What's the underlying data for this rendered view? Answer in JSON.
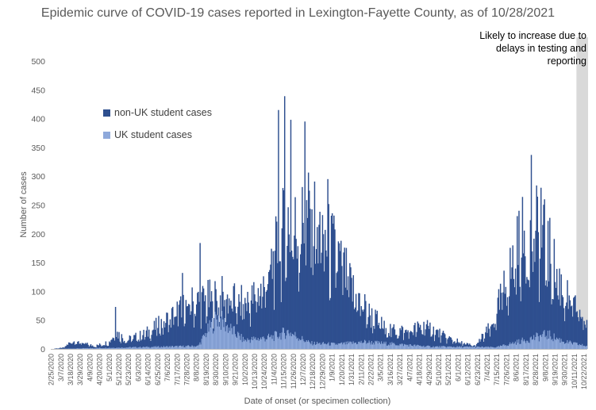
{
  "chart_data": {
    "type": "bar",
    "title": "Epidemic curve of COVID-19 cases reported in Lexington-Fayette County, as of 10/28/2021",
    "xlabel": "Date of onset (or specimen collection)",
    "ylabel": "Number of cases",
    "ylim": [
      0,
      500
    ],
    "yticks": [
      0,
      50,
      100,
      150,
      200,
      250,
      300,
      350,
      400,
      450,
      500
    ],
    "x_start": "2/25/2020",
    "x_end": "10/25/2021",
    "x_tick_labels": [
      "2/25/2020",
      "3/7/2020",
      "3/18/2020",
      "3/29/2020",
      "4/9/2020",
      "4/20/2020",
      "5/1/2020",
      "5/12/2020",
      "5/23/2020",
      "6/3/2020",
      "6/14/2020",
      "6/25/2020",
      "7/6/2020",
      "7/17/2020",
      "7/28/2020",
      "8/8/2020",
      "8/19/2020",
      "8/30/2020",
      "9/10/2020",
      "9/21/2020",
      "10/2/2020",
      "10/13/2020",
      "10/24/2020",
      "11/4/2020",
      "11/15/2020",
      "11/26/2020",
      "12/7/2020",
      "12/18/2020",
      "12/29/2020",
      "1/9/2021",
      "1/20/2021",
      "1/31/2021",
      "2/11/2021",
      "2/22/2021",
      "3/5/2021",
      "3/16/2021",
      "3/27/2021",
      "4/7/2021",
      "4/18/2021",
      "4/29/2021",
      "5/10/2021",
      "5/21/2021",
      "6/1/2021",
      "6/12/2021",
      "6/23/2021",
      "7/4/2021",
      "7/15/2021",
      "7/26/2021",
      "8/6/2021",
      "8/17/2021",
      "8/28/2021",
      "9/8/2021",
      "9/19/2021",
      "9/30/2021",
      "10/11/2021",
      "10/22/2021"
    ],
    "series": [
      {
        "name": "non-UK student cases",
        "color": "#2e4f8f"
      },
      {
        "name": "UK student cases",
        "color": "#8ea9db"
      }
    ],
    "total_curve": [
      {
        "date": "2/25/2020",
        "value": 0
      },
      {
        "date": "3/10/2020",
        "value": 2
      },
      {
        "date": "3/20/2020",
        "value": 14
      },
      {
        "date": "3/30/2020",
        "value": 10
      },
      {
        "date": "4/15/2020",
        "value": 5
      },
      {
        "date": "5/1/2020",
        "value": 12
      },
      {
        "date": "5/8/2020",
        "value": 30
      },
      {
        "date": "5/20/2020",
        "value": 15
      },
      {
        "date": "6/10/2020",
        "value": 25
      },
      {
        "date": "7/1/2020",
        "value": 45
      },
      {
        "date": "7/20/2020",
        "value": 65
      },
      {
        "date": "8/5/2020",
        "value": 80
      },
      {
        "date": "8/25/2020",
        "value": 85
      },
      {
        "date": "9/10/2020",
        "value": 90
      },
      {
        "date": "9/25/2020",
        "value": 75
      },
      {
        "date": "10/10/2020",
        "value": 85
      },
      {
        "date": "10/25/2020",
        "value": 110
      },
      {
        "date": "11/10/2020",
        "value": 180
      },
      {
        "date": "11/20/2020",
        "value": 220
      },
      {
        "date": "12/1/2020",
        "value": 200
      },
      {
        "date": "12/15/2020",
        "value": 230
      },
      {
        "date": "12/30/2020",
        "value": 190
      },
      {
        "date": "1/15/2021",
        "value": 160
      },
      {
        "date": "2/1/2021",
        "value": 100
      },
      {
        "date": "2/20/2021",
        "value": 60
      },
      {
        "date": "3/10/2021",
        "value": 35
      },
      {
        "date": "4/5/2021",
        "value": 30
      },
      {
        "date": "4/25/2021",
        "value": 40
      },
      {
        "date": "5/15/2021",
        "value": 22
      },
      {
        "date": "6/5/2021",
        "value": 10
      },
      {
        "date": "6/20/2021",
        "value": 5
      },
      {
        "date": "7/10/2021",
        "value": 40
      },
      {
        "date": "7/25/2021",
        "value": 110
      },
      {
        "date": "8/10/2021",
        "value": 180
      },
      {
        "date": "8/25/2021",
        "value": 200
      },
      {
        "date": "9/5/2021",
        "value": 190
      },
      {
        "date": "9/20/2021",
        "value": 130
      },
      {
        "date": "10/5/2021",
        "value": 80
      },
      {
        "date": "10/25/2021",
        "value": 45
      }
    ],
    "uk_curve": [
      {
        "date": "2/25/2020",
        "value": 0
      },
      {
        "date": "8/10/2020",
        "value": 5
      },
      {
        "date": "8/20/2020",
        "value": 30
      },
      {
        "date": "9/1/2020",
        "value": 55
      },
      {
        "date": "9/15/2020",
        "value": 35
      },
      {
        "date": "10/1/2020",
        "value": 15
      },
      {
        "date": "11/1/2020",
        "value": 20
      },
      {
        "date": "11/20/2020",
        "value": 30
      },
      {
        "date": "12/15/2020",
        "value": 10
      },
      {
        "date": "1/15/2021",
        "value": 8
      },
      {
        "date": "2/15/2021",
        "value": 12
      },
      {
        "date": "5/1/2021",
        "value": 4
      },
      {
        "date": "7/15/2021",
        "value": 3
      },
      {
        "date": "8/15/2021",
        "value": 15
      },
      {
        "date": "9/10/2021",
        "value": 25
      },
      {
        "date": "10/1/2021",
        "value": 12
      },
      {
        "date": "10/25/2021",
        "value": 5
      }
    ],
    "notable_peaks": [
      {
        "date": "5/8/2020",
        "value": 73
      },
      {
        "date": "7/23/2020",
        "value": 132
      },
      {
        "date": "8/12/2020",
        "value": 184
      },
      {
        "date": "11/9/2020",
        "value": 415
      },
      {
        "date": "11/16/2020",
        "value": 439
      },
      {
        "date": "11/23/2020",
        "value": 398
      },
      {
        "date": "12/9/2020",
        "value": 395
      },
      {
        "date": "1/4/2021",
        "value": 295
      },
      {
        "date": "8/23/2021",
        "value": 337
      },
      {
        "date": "9/3/2021",
        "value": 280
      }
    ],
    "shaded_from": "10/15/2021",
    "shaded_note": "Likely to increase due to delays in testing and reporting",
    "grid": false,
    "legend_position": "upper-left"
  }
}
